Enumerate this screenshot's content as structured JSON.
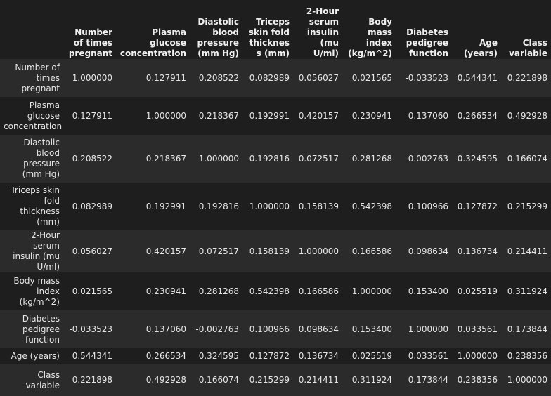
{
  "chart_data": {
    "type": "table",
    "columns": [
      "Number of times pregnant",
      "Plasma glucose concentration",
      "Diastolic blood pressure (mm Hg)",
      "Triceps skin fold thickness (mm)",
      "2-Hour serum insulin (mu U/ml)",
      "Body mass index (kg/m^2)",
      "Diabetes pedigree function",
      "Age (years)",
      "Class variable"
    ],
    "rows": [
      {
        "label": "Number of times pregnant",
        "values": [
          "1.000000",
          "0.127911",
          "0.208522",
          "0.082989",
          "0.056027",
          "0.021565",
          "-0.033523",
          "0.544341",
          "0.221898"
        ]
      },
      {
        "label": "Plasma glucose concentration",
        "values": [
          "0.127911",
          "1.000000",
          "0.218367",
          "0.192991",
          "0.420157",
          "0.230941",
          "0.137060",
          "0.266534",
          "0.492928"
        ]
      },
      {
        "label": "Diastolic blood pressure (mm Hg)",
        "values": [
          "0.208522",
          "0.218367",
          "1.000000",
          "0.192816",
          "0.072517",
          "0.281268",
          "-0.002763",
          "0.324595",
          "0.166074"
        ]
      },
      {
        "label": "Triceps skin fold thickness (mm)",
        "values": [
          "0.082989",
          "0.192991",
          "0.192816",
          "1.000000",
          "0.158139",
          "0.542398",
          "0.100966",
          "0.127872",
          "0.215299"
        ]
      },
      {
        "label": "2-Hour serum insulin (mu U/ml)",
        "values": [
          "0.056027",
          "0.420157",
          "0.072517",
          "0.158139",
          "1.000000",
          "0.166586",
          "0.098634",
          "0.136734",
          "0.214411"
        ]
      },
      {
        "label": "Body mass index (kg/m^2)",
        "values": [
          "0.021565",
          "0.230941",
          "0.281268",
          "0.542398",
          "0.166586",
          "1.000000",
          "0.153400",
          "0.025519",
          "0.311924"
        ]
      },
      {
        "label": "Diabetes pedigree function",
        "values": [
          "-0.033523",
          "0.137060",
          "-0.002763",
          "0.100966",
          "0.098634",
          "0.153400",
          "1.000000",
          "0.033561",
          "0.173844"
        ]
      },
      {
        "label": "Age (years)",
        "values": [
          "0.544341",
          "0.266534",
          "0.324595",
          "0.127872",
          "0.136734",
          "0.025519",
          "0.033561",
          "1.000000",
          "0.238356"
        ]
      },
      {
        "label": "Class variable",
        "values": [
          "0.221898",
          "0.492928",
          "0.166074",
          "0.215299",
          "0.214411",
          "0.311924",
          "0.173844",
          "0.238356",
          "1.000000"
        ]
      }
    ]
  }
}
